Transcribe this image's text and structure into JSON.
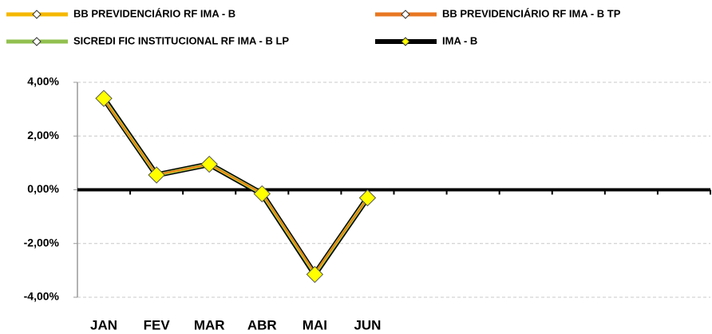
{
  "chart_data": {
    "type": "line",
    "categories": [
      "JAN",
      "FEV",
      "MAR",
      "ABR",
      "MAI",
      "JUN",
      null,
      null,
      null,
      null,
      null,
      null
    ],
    "series": [
      {
        "name": "BB PREVIDENCIÁRIO RF IMA - B",
        "color": "#f5b800",
        "values": [
          3.38,
          0.56,
          0.94,
          -0.14,
          -3.12,
          -0.3,
          null,
          null,
          null,
          null,
          null,
          null
        ]
      },
      {
        "name": "BB PREVIDENCIÁRIO RF IMA - B TP",
        "color": "#e87722",
        "values": [
          3.36,
          0.57,
          0.95,
          -0.13,
          -3.1,
          -0.31,
          null,
          null,
          null,
          null,
          null,
          null
        ]
      },
      {
        "name": "SICREDI FIC INSTITUCIONAL RF IMA - B LP",
        "color": "#92c050",
        "values": [
          3.39,
          0.55,
          0.95,
          -0.15,
          -3.14,
          -0.3,
          null,
          null,
          null,
          null,
          null,
          null
        ]
      },
      {
        "name": "IMA - B",
        "color": "#000000",
        "values": [
          3.4,
          0.55,
          0.95,
          -0.15,
          -3.15,
          -0.3,
          null,
          null,
          null,
          null,
          null,
          null
        ]
      }
    ],
    "ylim": [
      -4,
      4
    ],
    "yticks": [
      {
        "value": -4,
        "label": "-4,00%"
      },
      {
        "value": -2,
        "label": "-2,00%"
      },
      {
        "value": 0,
        "label": "0,00%"
      },
      {
        "value": 2,
        "label": "2,00%"
      },
      {
        "value": 4,
        "label": "4,00%"
      }
    ],
    "grid": true
  }
}
